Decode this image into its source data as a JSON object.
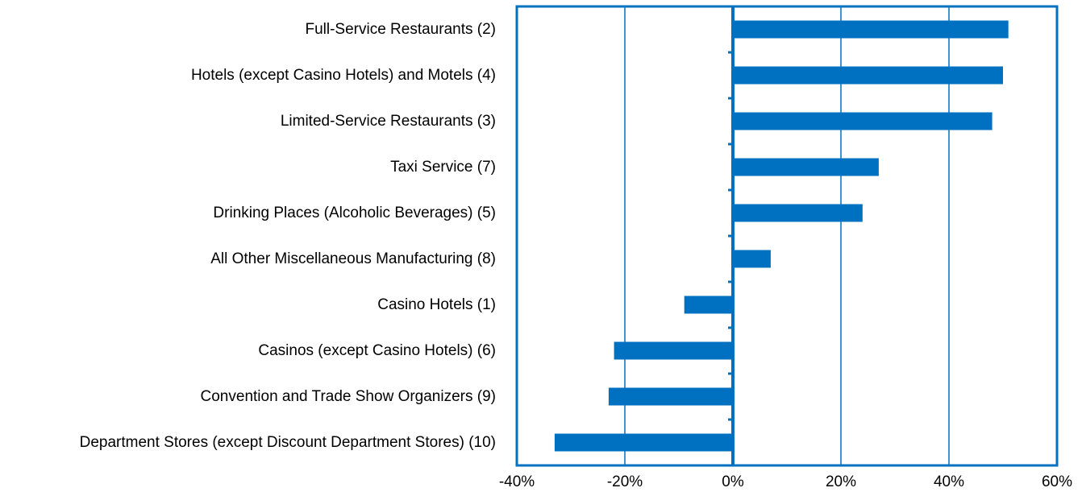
{
  "chart_data": {
    "type": "bar",
    "orientation": "horizontal",
    "categories": [
      "Full-Service Restaurants (2)",
      "Hotels (except Casino Hotels) and Motels (4)",
      "Limited-Service Restaurants (3)",
      "Taxi Service (7)",
      "Drinking Places (Alcoholic Beverages) (5)",
      "All Other Miscellaneous Manufacturing (8)",
      "Casino Hotels (1)",
      "Casinos (except Casino Hotels) (6)",
      "Convention and Trade Show Organizers (9)",
      "Department Stores (except Discount Department Stores) (10)"
    ],
    "values": [
      51,
      50,
      48,
      27,
      24,
      7,
      -9,
      -22,
      -23,
      -33
    ],
    "color": "#0070c0",
    "xlim": [
      -40,
      60
    ],
    "xticks": [
      {
        "value": -40,
        "label": "-40%"
      },
      {
        "value": -20,
        "label": "-20%"
      },
      {
        "value": 0,
        "label": "0%"
      },
      {
        "value": 20,
        "label": "20%"
      },
      {
        "value": 40,
        "label": "40%"
      },
      {
        "value": 60,
        "label": "60%"
      }
    ],
    "grid": true
  }
}
